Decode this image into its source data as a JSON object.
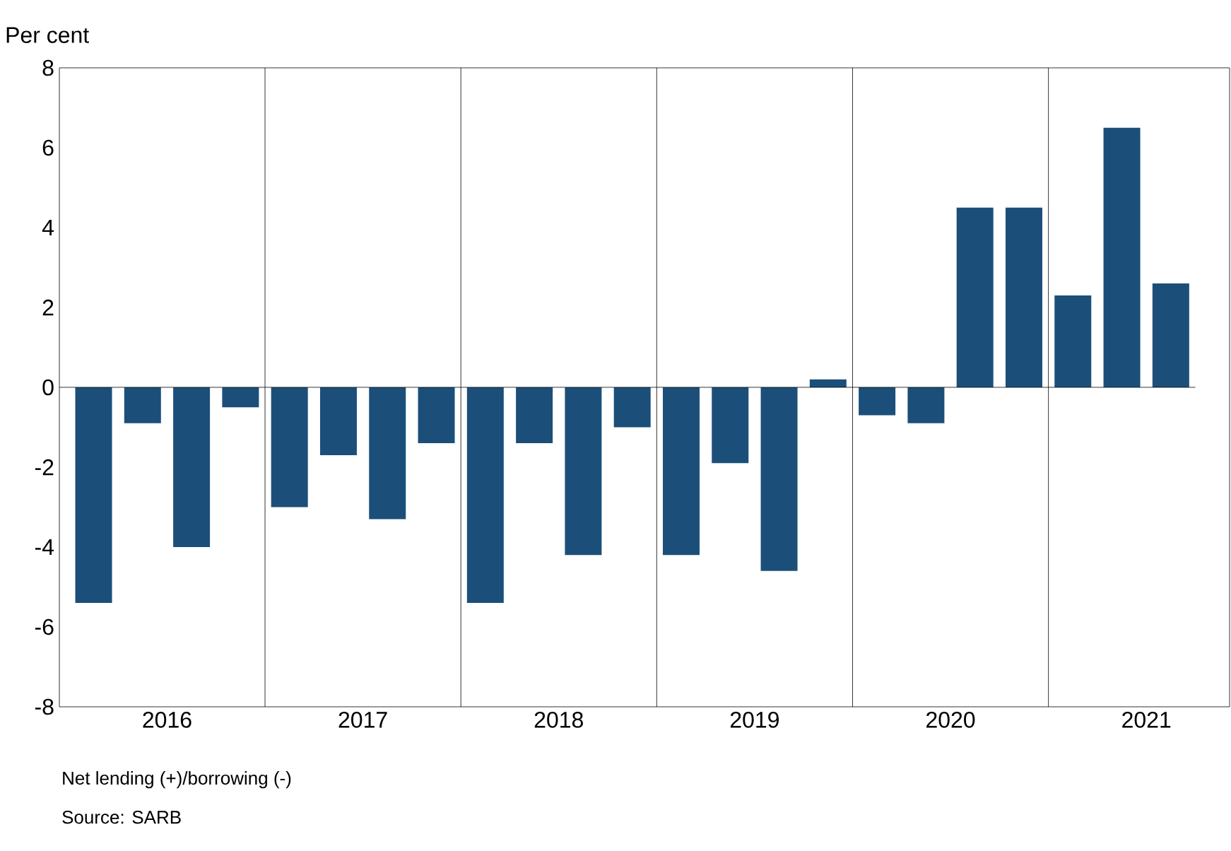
{
  "chart_data": {
    "type": "bar",
    "ylabel": "Per cent",
    "categories": [
      null,
      "2016",
      null,
      null,
      null,
      "2017",
      null,
      null,
      null,
      "2018",
      null,
      null,
      null,
      "2019",
      null,
      null,
      null,
      "2020",
      null,
      null,
      null,
      "2021",
      null
    ],
    "values": [
      -5.4,
      -0.9,
      -4.0,
      -0.5,
      -3.0,
      -1.7,
      -3.3,
      -1.4,
      -5.4,
      -1.4,
      -4.2,
      -1.0,
      -4.2,
      -1.9,
      -4.6,
      0.2,
      -0.7,
      -0.9,
      4.5,
      4.5,
      2.3,
      6.5,
      2.6
    ],
    "color": "#1b4f7a",
    "ylim": [
      -8,
      8
    ],
    "yticks": [
      -8,
      -6,
      -4,
      -2,
      0,
      2,
      4,
      6,
      8
    ],
    "grid": "x",
    "ref_lines": [
      {
        "axis": "y",
        "value": 0
      }
    ],
    "annotations": [
      "Net lending (+)/borrowing (-)",
      "Source: SARB"
    ]
  }
}
